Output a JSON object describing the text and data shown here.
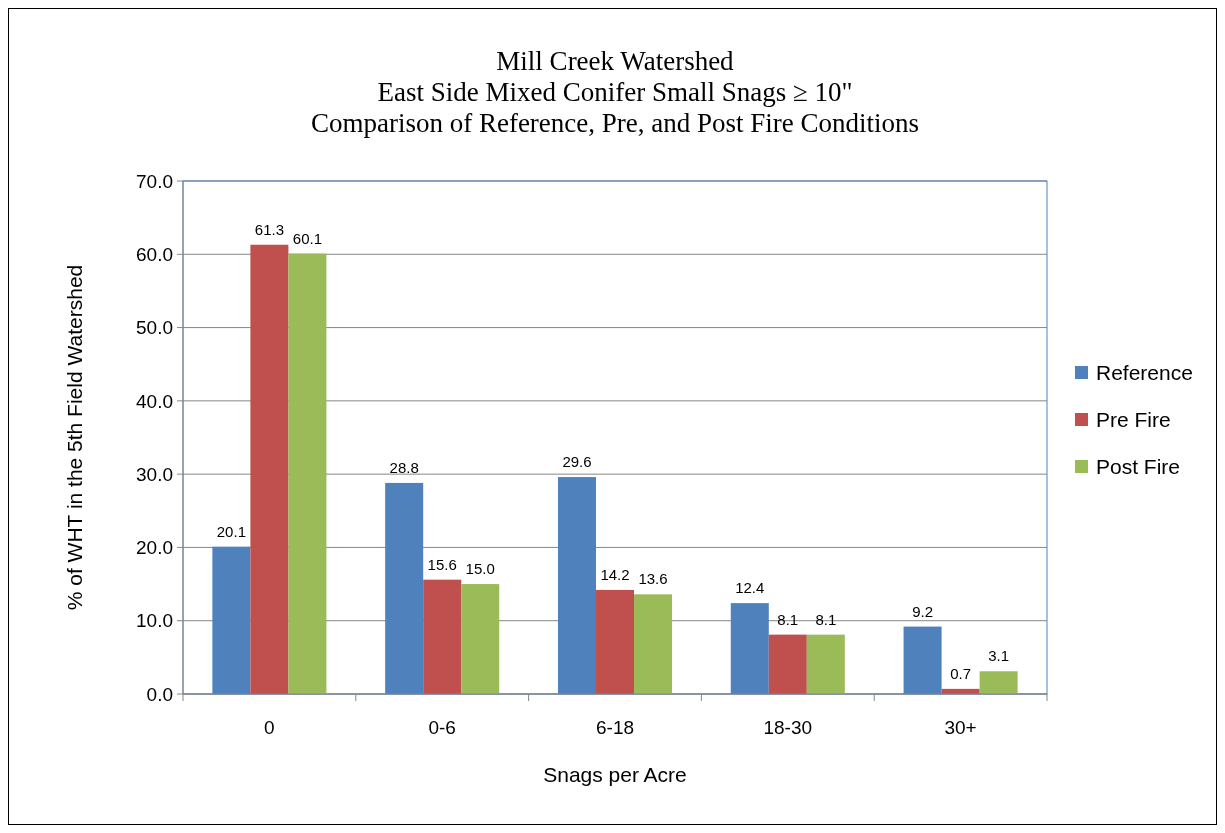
{
  "chart_data": {
    "type": "bar",
    "title": "Mill Creek Watershed\nEast Side Mixed Conifer Small Snags ≥ 10\"\nComparison of Reference, Pre, and Post Fire Conditions",
    "xlabel": "Snags per Acre",
    "ylabel": "% of WHT in the 5th Field Watershed",
    "categories": [
      "0",
      "0-6",
      "6-18",
      "18-30",
      "30+"
    ],
    "series": [
      {
        "name": "Reference",
        "color": "#4f81bd",
        "values": [
          20.1,
          28.8,
          29.6,
          12.4,
          9.2
        ],
        "value_labels": [
          "20.1",
          "28.8",
          "29.6",
          "12.4",
          "9.2"
        ]
      },
      {
        "name": "Pre Fire",
        "color": "#c0504d",
        "values": [
          61.3,
          15.6,
          14.2,
          8.1,
          0.7
        ],
        "value_labels": [
          "61.3",
          "15.6",
          "14.2",
          "8.1",
          "0.7"
        ]
      },
      {
        "name": "Post Fire",
        "color": "#9bbb59",
        "values": [
          60.1,
          15.0,
          13.6,
          8.1,
          3.1
        ],
        "value_labels": [
          "60.1",
          "15.0",
          "13.6",
          "8.1",
          "3.1"
        ]
      }
    ],
    "ylim": [
      0,
      70
    ],
    "yticks": [
      {
        "value": 0,
        "label": "0.0"
      },
      {
        "value": 10,
        "label": "10.0"
      },
      {
        "value": 20,
        "label": "20.0"
      },
      {
        "value": 30,
        "label": "30.0"
      },
      {
        "value": 40,
        "label": "40.0"
      },
      {
        "value": 50,
        "label": "50.0"
      },
      {
        "value": 60,
        "label": "60.0"
      },
      {
        "value": 70,
        "label": "70.0"
      }
    ],
    "grid": "y",
    "legend": "right"
  }
}
